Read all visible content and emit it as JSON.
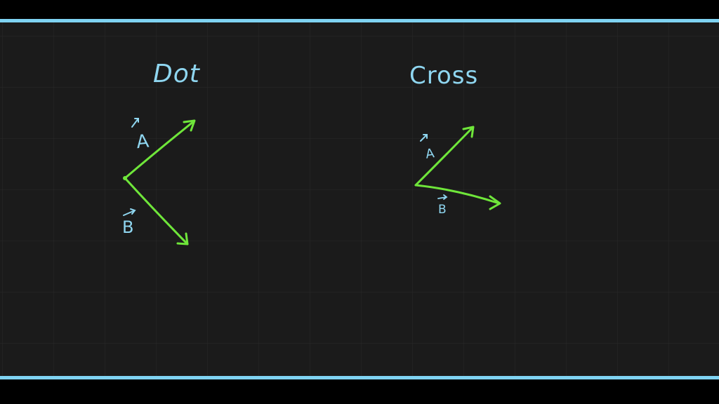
{
  "board": {
    "background_color": "#1b1b1b",
    "border_color": "#7fd3f2",
    "grid_color": "#2a2a2a",
    "grid": true
  },
  "colors": {
    "vector": "#6fe63a",
    "label": "#8fd6f0"
  },
  "dot_panel": {
    "title": "Dot",
    "vector_a_label": "A",
    "vector_b_label": "B"
  },
  "cross_panel": {
    "title": "Cross",
    "vector_a_label": "A",
    "vector_b_label": "B"
  }
}
